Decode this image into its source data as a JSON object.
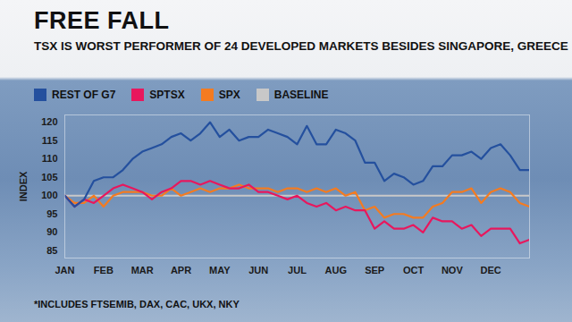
{
  "chart_data": {
    "type": "line",
    "title": "FREE FALL",
    "subtitle": "TSX IS WORST PERFORMER OF 24 DEVELOPED MARKETS BESIDES SINGAPORE, GREECE",
    "y_label": "INDEX",
    "footnote": "*INCLUDES FTSEMIB, DAX, CAC, UKX, NKY",
    "legend": "top",
    "grid": false,
    "categories": [
      "JAN",
      null,
      null,
      null,
      "FEB",
      null,
      null,
      null,
      "MAR",
      null,
      null,
      null,
      "APR",
      null,
      null,
      null,
      "MAY",
      null,
      null,
      null,
      "JUN",
      null,
      null,
      null,
      "JUL",
      null,
      null,
      null,
      "AUG",
      null,
      null,
      null,
      "SEP",
      null,
      null,
      null,
      "OCT",
      null,
      null,
      null,
      "NOV",
      null,
      null,
      null,
      "DEC",
      null,
      null,
      null,
      null
    ],
    "ylim": [
      83,
      122
    ],
    "yticks": [
      85,
      90,
      95,
      100,
      105,
      110,
      115,
      120
    ],
    "series": [
      {
        "name": "REST OF G7",
        "color": "#24509e",
        "values": [
          100,
          97,
          99,
          104,
          105,
          105,
          107,
          110,
          112,
          113,
          114,
          116,
          117,
          115,
          117,
          120,
          116,
          118,
          115,
          116,
          116,
          118,
          117,
          116,
          114,
          119,
          114,
          114,
          118,
          117,
          115,
          109,
          109,
          104,
          106,
          105,
          103,
          104,
          108,
          108,
          111,
          111,
          112,
          110,
          113,
          114,
          111,
          107,
          107
        ]
      },
      {
        "name": "SPTSX",
        "color": "#e8175d",
        "values": [
          100,
          97,
          99,
          98,
          100,
          102,
          103,
          102,
          101,
          99,
          101,
          102,
          104,
          104,
          103,
          104,
          103,
          102,
          102,
          103,
          101,
          101,
          100,
          99,
          100,
          98,
          97,
          98,
          96,
          97,
          96,
          96,
          91,
          93,
          91,
          91,
          92,
          90,
          94,
          93,
          93,
          91,
          92,
          89,
          91,
          91,
          91,
          87,
          88
        ]
      },
      {
        "name": "SPX",
        "color": "#f47b20",
        "values": [
          100,
          98,
          98,
          100,
          97,
          100,
          101,
          101,
          101,
          100,
          100,
          102,
          100,
          101,
          102,
          101,
          102,
          102,
          103,
          102,
          102,
          102,
          101,
          102,
          102,
          101,
          102,
          101,
          102,
          100,
          101,
          96,
          97,
          94,
          95,
          95,
          94,
          94,
          97,
          98,
          101,
          101,
          102,
          98,
          101,
          102,
          101,
          98,
          97
        ]
      },
      {
        "name": "BASELINE",
        "color": "#c8c8c8",
        "values": [
          100,
          100,
          100,
          100,
          100,
          100,
          100,
          100,
          100,
          100,
          100,
          100,
          100,
          100,
          100,
          100,
          100,
          100,
          100,
          100,
          100,
          100,
          100,
          100,
          100,
          100,
          100,
          100,
          100,
          100,
          100,
          100,
          100,
          100,
          100,
          100,
          100,
          100,
          100,
          100,
          100,
          100,
          100,
          100,
          100,
          100,
          100,
          100,
          100
        ]
      }
    ]
  }
}
